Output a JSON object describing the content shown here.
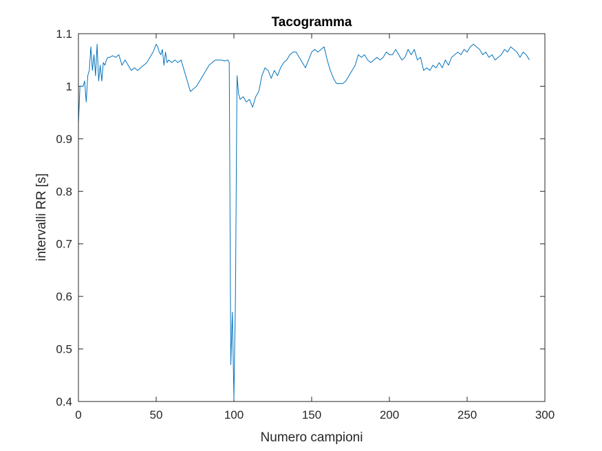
{
  "chart_data": {
    "type": "line",
    "title": "Tacogramma",
    "xlabel": "Numero campioni",
    "ylabel": "intervalli RR [s]",
    "xlim": [
      0,
      300
    ],
    "ylim": [
      0.4,
      1.1
    ],
    "xticks": [
      0,
      50,
      100,
      150,
      200,
      250,
      300
    ],
    "yticks": [
      0.4,
      0.5,
      0.6,
      0.7,
      0.8,
      0.9,
      1,
      1.1
    ],
    "xtick_labels": [
      "0",
      "50",
      "100",
      "150",
      "200",
      "250",
      "300"
    ],
    "ytick_labels": [
      "0.4",
      "0.5",
      "0.6",
      "0.7",
      "0.8",
      "0.9",
      "1",
      "1.1"
    ],
    "grid": false,
    "series_color": "#0072BD",
    "series": [
      {
        "x": [
          0,
          1,
          2,
          3,
          4,
          5,
          6,
          7,
          8,
          9,
          10,
          11,
          12,
          13,
          14,
          15,
          16,
          17,
          18,
          19,
          20,
          22,
          24,
          26,
          28,
          30,
          32,
          34,
          36,
          38,
          40,
          42,
          44,
          46,
          48,
          50,
          51,
          52,
          53,
          54,
          55,
          56,
          57,
          58,
          60,
          62,
          64,
          66,
          68,
          70,
          72,
          74,
          76,
          78,
          80,
          82,
          84,
          86,
          88,
          90,
          92,
          94,
          96,
          97,
          98,
          99,
          100,
          101,
          102,
          103,
          104,
          106,
          108,
          110,
          112,
          114,
          116,
          118,
          120,
          122,
          124,
          126,
          128,
          130,
          132,
          134,
          136,
          138,
          140,
          142,
          144,
          146,
          148,
          150,
          152,
          154,
          156,
          158,
          160,
          162,
          164,
          166,
          168,
          170,
          172,
          174,
          176,
          178,
          180,
          182,
          184,
          186,
          188,
          190,
          192,
          194,
          196,
          198,
          200,
          202,
          204,
          206,
          208,
          210,
          212,
          214,
          216,
          218,
          220,
          222,
          224,
          226,
          228,
          230,
          232,
          234,
          236,
          238,
          240,
          242,
          244,
          246,
          248,
          250,
          252,
          254,
          256,
          258,
          260,
          262,
          264,
          266,
          268,
          270,
          272,
          274,
          276,
          278,
          280,
          282,
          284,
          286,
          288,
          290
        ],
        "y": [
          0.93,
          1.0,
          1.0,
          1.0,
          1.01,
          0.97,
          1.02,
          1.03,
          1.075,
          1.03,
          1.06,
          1.02,
          1.08,
          1.01,
          1.04,
          1.01,
          1.045,
          1.04,
          1.05,
          1.055,
          1.055,
          1.058,
          1.055,
          1.06,
          1.04,
          1.05,
          1.04,
          1.03,
          1.035,
          1.03,
          1.035,
          1.04,
          1.045,
          1.055,
          1.065,
          1.08,
          1.075,
          1.065,
          1.06,
          1.07,
          1.04,
          1.065,
          1.045,
          1.05,
          1.045,
          1.05,
          1.045,
          1.05,
          1.03,
          1.01,
          0.99,
          0.995,
          1.0,
          1.01,
          1.02,
          1.03,
          1.04,
          1.045,
          1.05,
          1.05,
          1.05,
          1.048,
          1.05,
          1.045,
          0.47,
          0.57,
          0.405,
          0.6,
          1.02,
          0.985,
          0.975,
          0.98,
          0.97,
          0.975,
          0.96,
          0.98,
          0.99,
          1.02,
          1.035,
          1.03,
          1.015,
          1.03,
          1.02,
          1.035,
          1.045,
          1.05,
          1.06,
          1.065,
          1.065,
          1.055,
          1.045,
          1.035,
          1.05,
          1.065,
          1.07,
          1.065,
          1.07,
          1.075,
          1.05,
          1.03,
          1.015,
          1.005,
          1.005,
          1.005,
          1.01,
          1.02,
          1.03,
          1.04,
          1.06,
          1.055,
          1.06,
          1.05,
          1.045,
          1.05,
          1.055,
          1.05,
          1.055,
          1.065,
          1.06,
          1.06,
          1.07,
          1.06,
          1.05,
          1.055,
          1.07,
          1.06,
          1.07,
          1.05,
          1.055,
          1.03,
          1.035,
          1.03,
          1.04,
          1.035,
          1.045,
          1.035,
          1.05,
          1.04,
          1.055,
          1.06,
          1.065,
          1.06,
          1.07,
          1.065,
          1.075,
          1.08,
          1.075,
          1.07,
          1.06,
          1.065,
          1.055,
          1.06,
          1.05,
          1.055,
          1.06,
          1.07,
          1.065,
          1.075,
          1.07,
          1.065,
          1.055,
          1.065,
          1.06,
          1.05
        ]
      }
    ]
  }
}
